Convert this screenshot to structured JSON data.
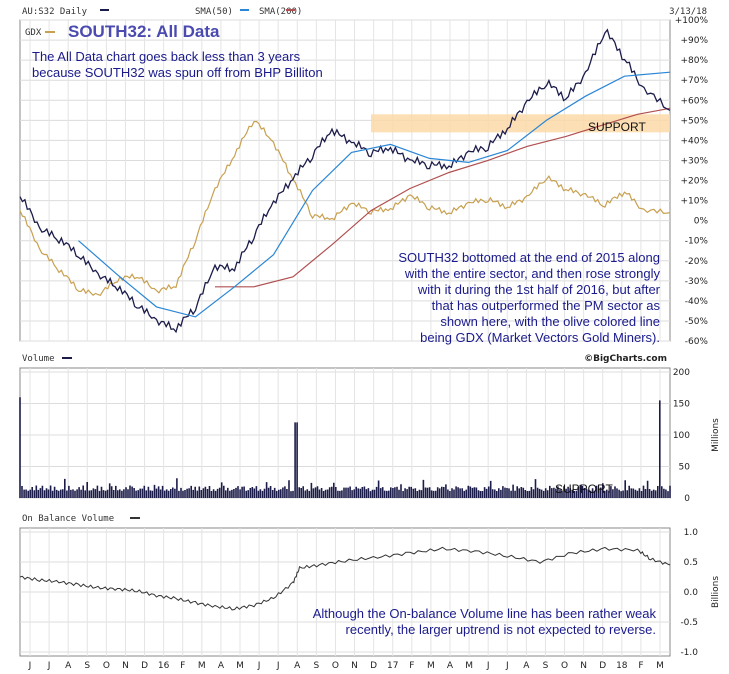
{
  "chart_data": {
    "type": "line",
    "header": {
      "symbol_label": "AU:S32 Daily",
      "sma50_label": "SMA(50)",
      "sma200_label": "SMA(200)",
      "date": "3/13/18"
    },
    "title": "SOUTH32: All Data",
    "gdx_label": "GDX",
    "credit": "©BigCharts.com",
    "annotations": {
      "top_left": [
        "The All Data chart goes back less than 3 years",
        "because SOUTH32 was spun off from BHP Billiton"
      ],
      "middle_right": [
        "SOUTH32 bottomed at the end of 2015 along",
        "with the entire sector, and then rose strongly",
        "with it during the 1st half of 2016, but after",
        "that has outperformed the PM sector as",
        "shown here, with the olive colored line",
        "being GDX (Market Vectors Gold Miners)."
      ],
      "obv_note": [
        "Although the On-balance Volume line has been rather weak",
        "recently, the larger uptrend is not expected to reverse."
      ],
      "support": "SUPPORT",
      "support_volume": "SUPPORT"
    },
    "colors": {
      "price": "#1c1c4a",
      "sma50": "#2a86d6",
      "sma200": "#b05050",
      "gdx": "#c8a050",
      "support_band": "#fbd9a8",
      "volume": "#1c1c4a",
      "obv": "#333333",
      "title": "#4a4ab0",
      "note": "#1a1a8c"
    },
    "x_labels": [
      "J",
      "J",
      "A",
      "S",
      "O",
      "N",
      "D",
      "16",
      "F",
      "M",
      "A",
      "M",
      "J",
      "J",
      "A",
      "S",
      "O",
      "N",
      "D",
      "17",
      "F",
      "M",
      "A",
      "M",
      "J",
      "J",
      "A",
      "S",
      "O",
      "N",
      "D",
      "18",
      "F",
      "M"
    ],
    "price_panel": {
      "yticks": [
        "+100%",
        "+90%",
        "+80%",
        "+70%",
        "+60%",
        "+50%",
        "+40%",
        "+30%",
        "+20%",
        "+10%",
        "0%",
        "-10%",
        "-20%",
        "-30%",
        "-40%",
        "-50%",
        "-60%"
      ],
      "ylim": [
        -60,
        100
      ],
      "support_range": [
        44,
        53
      ],
      "series": [
        {
          "name": "AU:S32",
          "x": [
            0,
            0.03,
            0.06,
            0.09,
            0.12,
            0.15,
            0.18,
            0.21,
            0.24,
            0.27,
            0.3,
            0.33,
            0.36,
            0.39,
            0.42,
            0.45,
            0.48,
            0.51,
            0.54,
            0.57,
            0.6,
            0.63,
            0.66,
            0.69,
            0.72,
            0.75,
            0.78,
            0.81,
            0.84,
            0.87,
            0.9,
            0.93,
            0.96,
            1.0
          ],
          "y": [
            12,
            -5,
            -10,
            -18,
            -28,
            -34,
            -43,
            -51,
            -55,
            -44,
            -24,
            -25,
            -8,
            8,
            20,
            32,
            44,
            38,
            33,
            35,
            29,
            27,
            26,
            33,
            36,
            45,
            58,
            68,
            60,
            72,
            94,
            80,
            64,
            55
          ]
        },
        {
          "name": "SMA(50)",
          "x": [
            0.09,
            0.15,
            0.21,
            0.27,
            0.33,
            0.39,
            0.45,
            0.51,
            0.57,
            0.63,
            0.69,
            0.75,
            0.81,
            0.87,
            0.93,
            1.0
          ],
          "y": [
            -10,
            -27,
            -43,
            -48,
            -33,
            -17,
            15,
            34,
            38,
            31,
            29,
            35,
            50,
            62,
            72,
            74
          ]
        },
        {
          "name": "SMA(200)",
          "x": [
            0.3,
            0.36,
            0.42,
            0.48,
            0.54,
            0.6,
            0.66,
            0.72,
            0.78,
            0.84,
            0.9,
            0.95,
            1.0
          ],
          "y": [
            -33,
            -33,
            -28,
            -12,
            5,
            16,
            24,
            30,
            37,
            42,
            48,
            53,
            56
          ]
        },
        {
          "name": "GDX",
          "x": [
            0,
            0.03,
            0.06,
            0.09,
            0.12,
            0.15,
            0.18,
            0.21,
            0.24,
            0.27,
            0.3,
            0.33,
            0.36,
            0.39,
            0.42,
            0.45,
            0.48,
            0.51,
            0.54,
            0.57,
            0.6,
            0.63,
            0.66,
            0.69,
            0.72,
            0.75,
            0.78,
            0.81,
            0.84,
            0.87,
            0.9,
            0.93,
            0.96,
            1.0
          ],
          "y": [
            5,
            -15,
            -25,
            -35,
            -38,
            -30,
            -28,
            -36,
            -33,
            -10,
            15,
            32,
            50,
            38,
            20,
            2,
            0,
            8,
            4,
            5,
            12,
            6,
            3,
            8,
            10,
            6,
            11,
            21,
            15,
            12,
            7,
            14,
            4,
            4
          ]
        }
      ]
    },
    "volume_panel": {
      "label": "Volume",
      "unit": "Millions",
      "yticks": [
        "200",
        "150",
        "100",
        "50",
        "0"
      ],
      "ylim": [
        0,
        200
      ],
      "spikes": [
        {
          "x": 0.0,
          "v": 160
        },
        {
          "x": 0.425,
          "v": 120
        },
        {
          "x": 0.985,
          "v": 155
        }
      ],
      "baseline": 20
    },
    "obv_panel": {
      "label": "On Balance Volume",
      "unit": "Billions",
      "yticks": [
        "1.0",
        "0.5",
        "0.0",
        "-0.5",
        "-1.0"
      ],
      "ylim": [
        -1.0,
        1.0
      ],
      "x": [
        0,
        0.03,
        0.06,
        0.09,
        0.12,
        0.15,
        0.18,
        0.21,
        0.24,
        0.27,
        0.3,
        0.33,
        0.36,
        0.39,
        0.42,
        0.43,
        0.46,
        0.5,
        0.55,
        0.6,
        0.65,
        0.7,
        0.75,
        0.8,
        0.85,
        0.9,
        0.95,
        0.97,
        1.0
      ],
      "y": [
        0.25,
        0.2,
        0.17,
        0.12,
        0.07,
        0.05,
        0.02,
        -0.06,
        -0.11,
        -0.18,
        -0.24,
        -0.28,
        -0.22,
        -0.1,
        0.15,
        0.4,
        0.45,
        0.52,
        0.58,
        0.65,
        0.72,
        0.68,
        0.6,
        0.5,
        0.65,
        0.72,
        0.7,
        0.55,
        0.45
      ]
    }
  }
}
